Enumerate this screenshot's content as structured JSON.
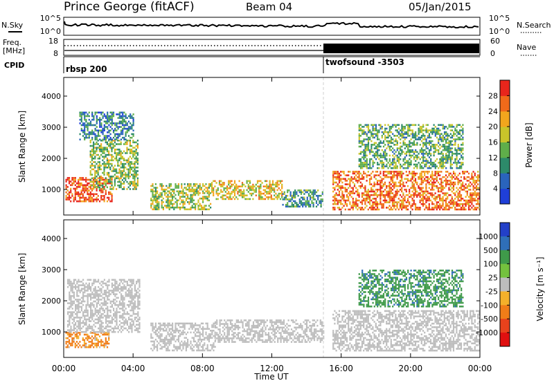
{
  "header": {
    "station": "Prince George (fitACF)",
    "beam": "Beam 04",
    "date": "05/Jan/2015"
  },
  "param_panel": {
    "nsky_label": "N.Sky",
    "nsky_ticks": [
      "10^5",
      "10^0"
    ],
    "nsearch_label": "N.Search",
    "nsearch_ticks": [
      "10^5",
      "10^0"
    ],
    "freq_label_1": "Freq.",
    "freq_label_2": "[MHz]",
    "freq_ticks": [
      "18",
      "8"
    ],
    "nave_label": "Nave",
    "nave_ticks": [
      "60",
      "0"
    ],
    "cpid_label": "CPID",
    "cpid_segments": [
      {
        "name": "rbsp 200",
        "start_hour": 0,
        "end_hour": 15
      },
      {
        "name": "twofsound -3503",
        "start_hour": 15,
        "end_hour": 24
      }
    ]
  },
  "chart_data": [
    {
      "type": "heatmap",
      "panel": "power",
      "ylabel": "Slant Range [km]",
      "ylim": [
        180,
        4600
      ],
      "yticks": [
        "1000",
        "2000",
        "3000",
        "4000"
      ],
      "xlim": [
        0,
        24
      ],
      "xticks": [
        "00:00",
        "04:00",
        "08:00",
        "12:00",
        "16:00",
        "20:00",
        "00:00"
      ],
      "colorbar": {
        "label": "Power [dB]",
        "ticks": [
          "4",
          "8",
          "12",
          "16",
          "20",
          "24",
          "28"
        ],
        "range": [
          0,
          30
        ],
        "colors": [
          "#1f3fd8",
          "#2a64bc",
          "#2d8a6a",
          "#5fae4a",
          "#c9c42a",
          "#f2a61d",
          "#f06a1a",
          "#e8261c"
        ]
      },
      "echo_regions": [
        {
          "time": [
            0.1,
            2.8
          ],
          "range": [
            600,
            1400
          ],
          "level": 26
        },
        {
          "time": [
            1.5,
            4.3
          ],
          "range": [
            1000,
            2600
          ],
          "level": 14
        },
        {
          "time": [
            0.9,
            4.0
          ],
          "range": [
            2600,
            3500
          ],
          "level": 8
        },
        {
          "time": [
            5.0,
            8.5
          ],
          "range": [
            350,
            1200
          ],
          "level": 16
        },
        {
          "time": [
            8.5,
            12.6
          ],
          "range": [
            700,
            1300
          ],
          "level": 18
        },
        {
          "time": [
            12.6,
            14.9
          ],
          "range": [
            450,
            1000
          ],
          "level": 10
        },
        {
          "time": [
            15.5,
            24.0
          ],
          "range": [
            350,
            1600
          ],
          "level": 24
        },
        {
          "time": [
            17.0,
            23.0
          ],
          "range": [
            1700,
            3100
          ],
          "level": 12
        }
      ]
    },
    {
      "type": "heatmap",
      "panel": "velocity",
      "ylabel": "Slant Range [km]",
      "ylim": [
        180,
        4600
      ],
      "yticks": [
        "1000",
        "2000",
        "3000",
        "4000"
      ],
      "xlabel": "Time UT",
      "xlim": [
        0,
        24
      ],
      "xticks": [
        "00:00",
        "04:00",
        "08:00",
        "12:00",
        "16:00",
        "20:00",
        "00:00"
      ],
      "colorbar": {
        "label": "Velocity [m s⁻¹]",
        "ticks": [
          "1000",
          "500",
          "100",
          "25",
          "-25",
          "-100",
          "-500",
          "-1000"
        ],
        "colors": [
          "#2340c8",
          "#2f6fb8",
          "#3f9a4a",
          "#74c23e",
          "#bdbdbd",
          "#f4b02a",
          "#f07d18",
          "#e8421c",
          "#e01010"
        ]
      },
      "echo_regions": [
        {
          "time": [
            0.1,
            2.6
          ],
          "range": [
            500,
            1000
          ],
          "velocity": -150
        },
        {
          "time": [
            0.2,
            4.4
          ],
          "range": [
            1000,
            2700
          ],
          "velocity": 0
        },
        {
          "time": [
            5.0,
            8.7
          ],
          "range": [
            400,
            1300
          ],
          "velocity": 0
        },
        {
          "time": [
            8.7,
            15.0
          ],
          "range": [
            700,
            1400
          ],
          "velocity": 0
        },
        {
          "time": [
            15.5,
            24.0
          ],
          "range": [
            400,
            1700
          ],
          "velocity": 0
        },
        {
          "time": [
            17.0,
            23.0
          ],
          "range": [
            1800,
            3000
          ],
          "velocity": 400
        }
      ]
    }
  ]
}
